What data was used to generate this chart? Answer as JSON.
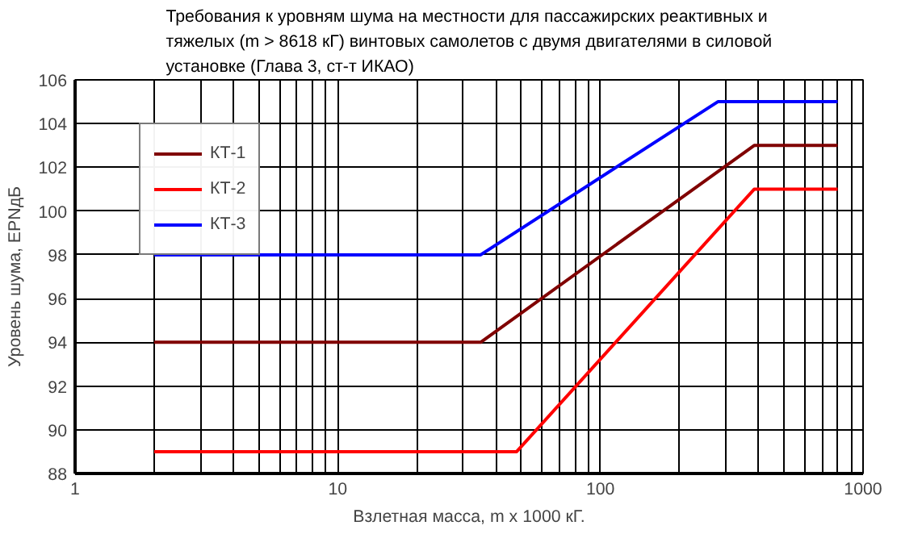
{
  "chart_data": {
    "type": "line",
    "title": "Требования к уровням шума на местности для пассажирских реактивных  и\nтяжелых (m > 8618 кГ) винтовых самолетов с двумя двигателями в силовой\nустановке (Глава 3, ст-т ИКАО)",
    "xlabel": "Взлетная масса, m x 1000 кГ.",
    "ylabel": "Уровень шума, EPNдБ",
    "log": "x",
    "xlim": [
      1,
      1000
    ],
    "xticks": [
      1,
      10,
      100,
      1000
    ],
    "ylim": [
      88,
      106
    ],
    "yticks": [
      88,
      90,
      92,
      94,
      96,
      98,
      100,
      102,
      104,
      106
    ],
    "grid": true,
    "legend": "top left",
    "line_style": "solid",
    "marker": "none",
    "series": [
      {
        "name": "КТ-1",
        "color": "#800000",
        "x": [
          2,
          35,
          385,
          800
        ],
        "values": [
          94,
          94,
          103,
          103
        ]
      },
      {
        "name": "КТ-2",
        "color": "#ff0000",
        "x": [
          2,
          48,
          385,
          800
        ],
        "values": [
          89,
          89,
          101,
          101
        ]
      },
      {
        "name": "КТ-3",
        "color": "#0000ff",
        "x": [
          2,
          35,
          280,
          800
        ],
        "values": [
          98,
          98,
          105,
          105
        ]
      }
    ]
  }
}
